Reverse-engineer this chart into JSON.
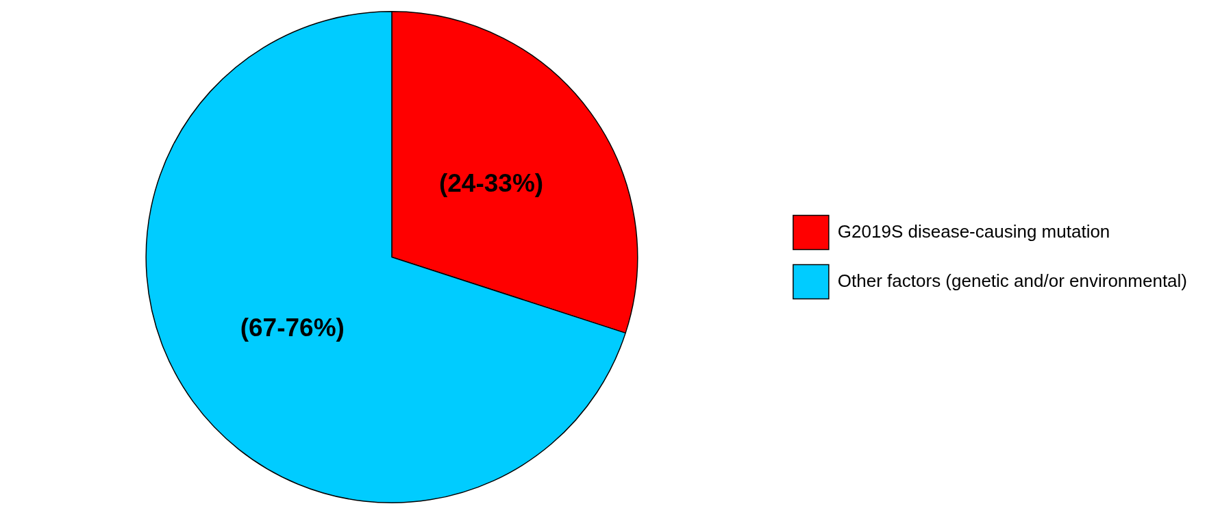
{
  "chart_data": {
    "type": "pie",
    "categories": [
      "G2019S disease-causing mutation",
      "Other factors (genetic and/or environmental)"
    ],
    "values": [
      30,
      70
    ],
    "colors": [
      "#ff0000",
      "#00ccff"
    ],
    "annotations": [
      {
        "text": "(24-33%)",
        "x": "G2019S disease-causing mutation"
      },
      {
        "text": "(67-76%)",
        "x": "Other factors (genetic and/or environmental)"
      }
    ],
    "legend": "right"
  }
}
